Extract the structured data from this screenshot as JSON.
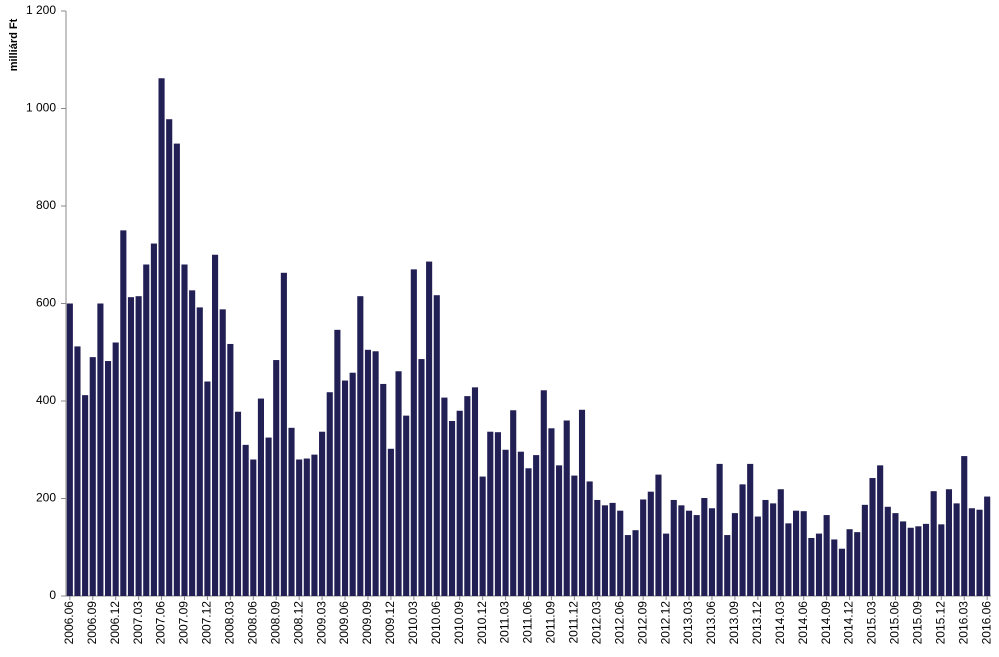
{
  "chart_data": {
    "type": "bar",
    "y_label": "milliárd Ft",
    "color": "#221f55",
    "categories": [
      "2006.06",
      null,
      null,
      "2006.09",
      null,
      null,
      "2006.12",
      null,
      null,
      "2007.03",
      null,
      null,
      "2007.06",
      null,
      null,
      "2007.09",
      null,
      null,
      "2007.12",
      null,
      null,
      "2008.03",
      null,
      null,
      "2008.06",
      null,
      null,
      "2008.09",
      null,
      null,
      "2008.12",
      null,
      null,
      "2009.03",
      null,
      null,
      "2009.06",
      null,
      null,
      "2009.09",
      null,
      null,
      "2009.12",
      null,
      null,
      "2010.03",
      null,
      null,
      "2010.06",
      null,
      null,
      "2010.09",
      null,
      null,
      "2010.12",
      null,
      null,
      "2011.03",
      null,
      null,
      "2011.06",
      null,
      null,
      "2011.09",
      null,
      null,
      "2011.12",
      null,
      null,
      "2012.03",
      null,
      null,
      "2012.06",
      null,
      null,
      "2012.09",
      null,
      null,
      "2012.12",
      null,
      null,
      "2013.03",
      null,
      null,
      "2013.06",
      null,
      null,
      "2013.09",
      null,
      null,
      "2013.12",
      null,
      null,
      "2014.03",
      null,
      null,
      "2014.06",
      null,
      null,
      "2014.09",
      null,
      null,
      "2014.12",
      null,
      null,
      "2015.03",
      null,
      null,
      "2015.06",
      null,
      null,
      "2015.09",
      null,
      null,
      "2015.12",
      null,
      null,
      "2016.03",
      null,
      null,
      "2016.06"
    ],
    "values": [
      600,
      512,
      412,
      490,
      600,
      482,
      520,
      750,
      613,
      615,
      680,
      723,
      1062,
      978,
      928,
      680,
      627,
      592,
      440,
      700,
      588,
      517,
      378,
      310,
      280,
      405,
      325,
      484,
      663,
      345,
      280,
      282,
      290,
      337,
      418,
      546,
      442,
      458,
      615,
      505,
      502,
      435,
      302,
      461,
      370,
      670,
      486,
      686,
      617,
      407,
      359,
      380,
      410,
      428,
      245,
      337,
      336,
      300,
      381,
      296,
      262,
      289,
      422,
      344,
      268,
      360,
      247,
      382,
      235,
      197,
      186,
      191,
      175,
      125,
      135,
      198,
      214,
      249,
      128,
      197,
      186,
      175,
      166,
      201,
      180,
      271,
      125,
      170,
      229,
      271,
      163,
      197,
      190,
      219,
      149,
      175,
      174,
      119,
      128,
      166,
      116,
      97,
      137,
      131,
      187,
      242,
      268,
      183,
      170,
      153,
      140,
      143,
      148,
      215,
      147,
      219,
      190,
      287,
      180,
      177,
      204
    ],
    "ylim": [
      0,
      1200
    ],
    "yticks": [
      0,
      200,
      400,
      600,
      800,
      {
        "value": 1000,
        "label": "1 000"
      },
      {
        "value": 1200,
        "label": "1 200"
      }
    ]
  }
}
